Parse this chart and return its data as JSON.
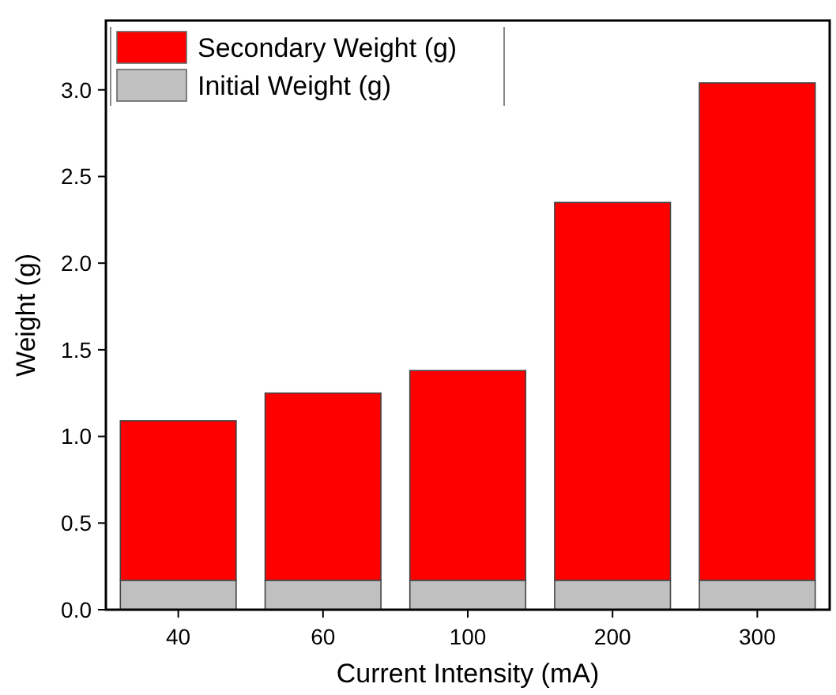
{
  "chart_data": {
    "type": "bar",
    "stacked": true,
    "xlabel": "Current Intensity (mA)",
    "ylabel": "Weight (g)",
    "categories": [
      "40",
      "60",
      "100",
      "200",
      "300"
    ],
    "series": [
      {
        "name": "Initial Weight (g)",
        "color": "#c0c0c0",
        "values": [
          0.17,
          0.17,
          0.17,
          0.17,
          0.17
        ]
      },
      {
        "name": "Secondary Weight (g)",
        "color": "#ff0000",
        "values": [
          0.92,
          1.08,
          1.21,
          2.18,
          2.87
        ]
      }
    ],
    "ylim": [
      0,
      3.4
    ],
    "yticks": [
      {
        "value": 0,
        "label": "0.0"
      },
      {
        "value": 0.5,
        "label": "0.5"
      },
      {
        "value": 1,
        "label": "1.0"
      },
      {
        "value": 1.5,
        "label": "1.5"
      },
      {
        "value": 2,
        "label": "2.0"
      },
      {
        "value": 2.5,
        "label": "2.5"
      },
      {
        "value": 3,
        "label": "3.0"
      }
    ],
    "legend": "top left",
    "grid": false
  }
}
